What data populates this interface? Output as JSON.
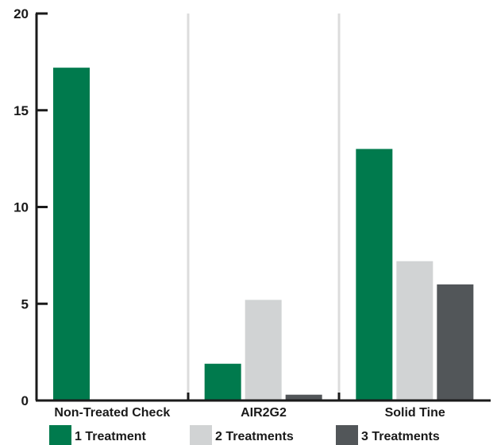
{
  "chart_data": {
    "type": "bar",
    "title": "",
    "xlabel": "",
    "ylabel": "",
    "categories": [
      "Non-Treated Check",
      "AIR2G2",
      "Solid Tine"
    ],
    "series": [
      {
        "name": "1 Treatment",
        "values": [
          17.2,
          1.9,
          13.0
        ],
        "color": "#007a4d"
      },
      {
        "name": "2 Treatments",
        "values": [
          0,
          5.2,
          7.2
        ],
        "color": "#d1d3d4"
      },
      {
        "name": "3 Treatments",
        "values": [
          0,
          0.3,
          6.0
        ],
        "color": "#525659"
      }
    ],
    "ylim": [
      0,
      20
    ],
    "yticks": [
      0,
      5,
      10,
      15,
      20
    ],
    "grid": false,
    "category_separators": true,
    "legend_position": "bottom"
  }
}
